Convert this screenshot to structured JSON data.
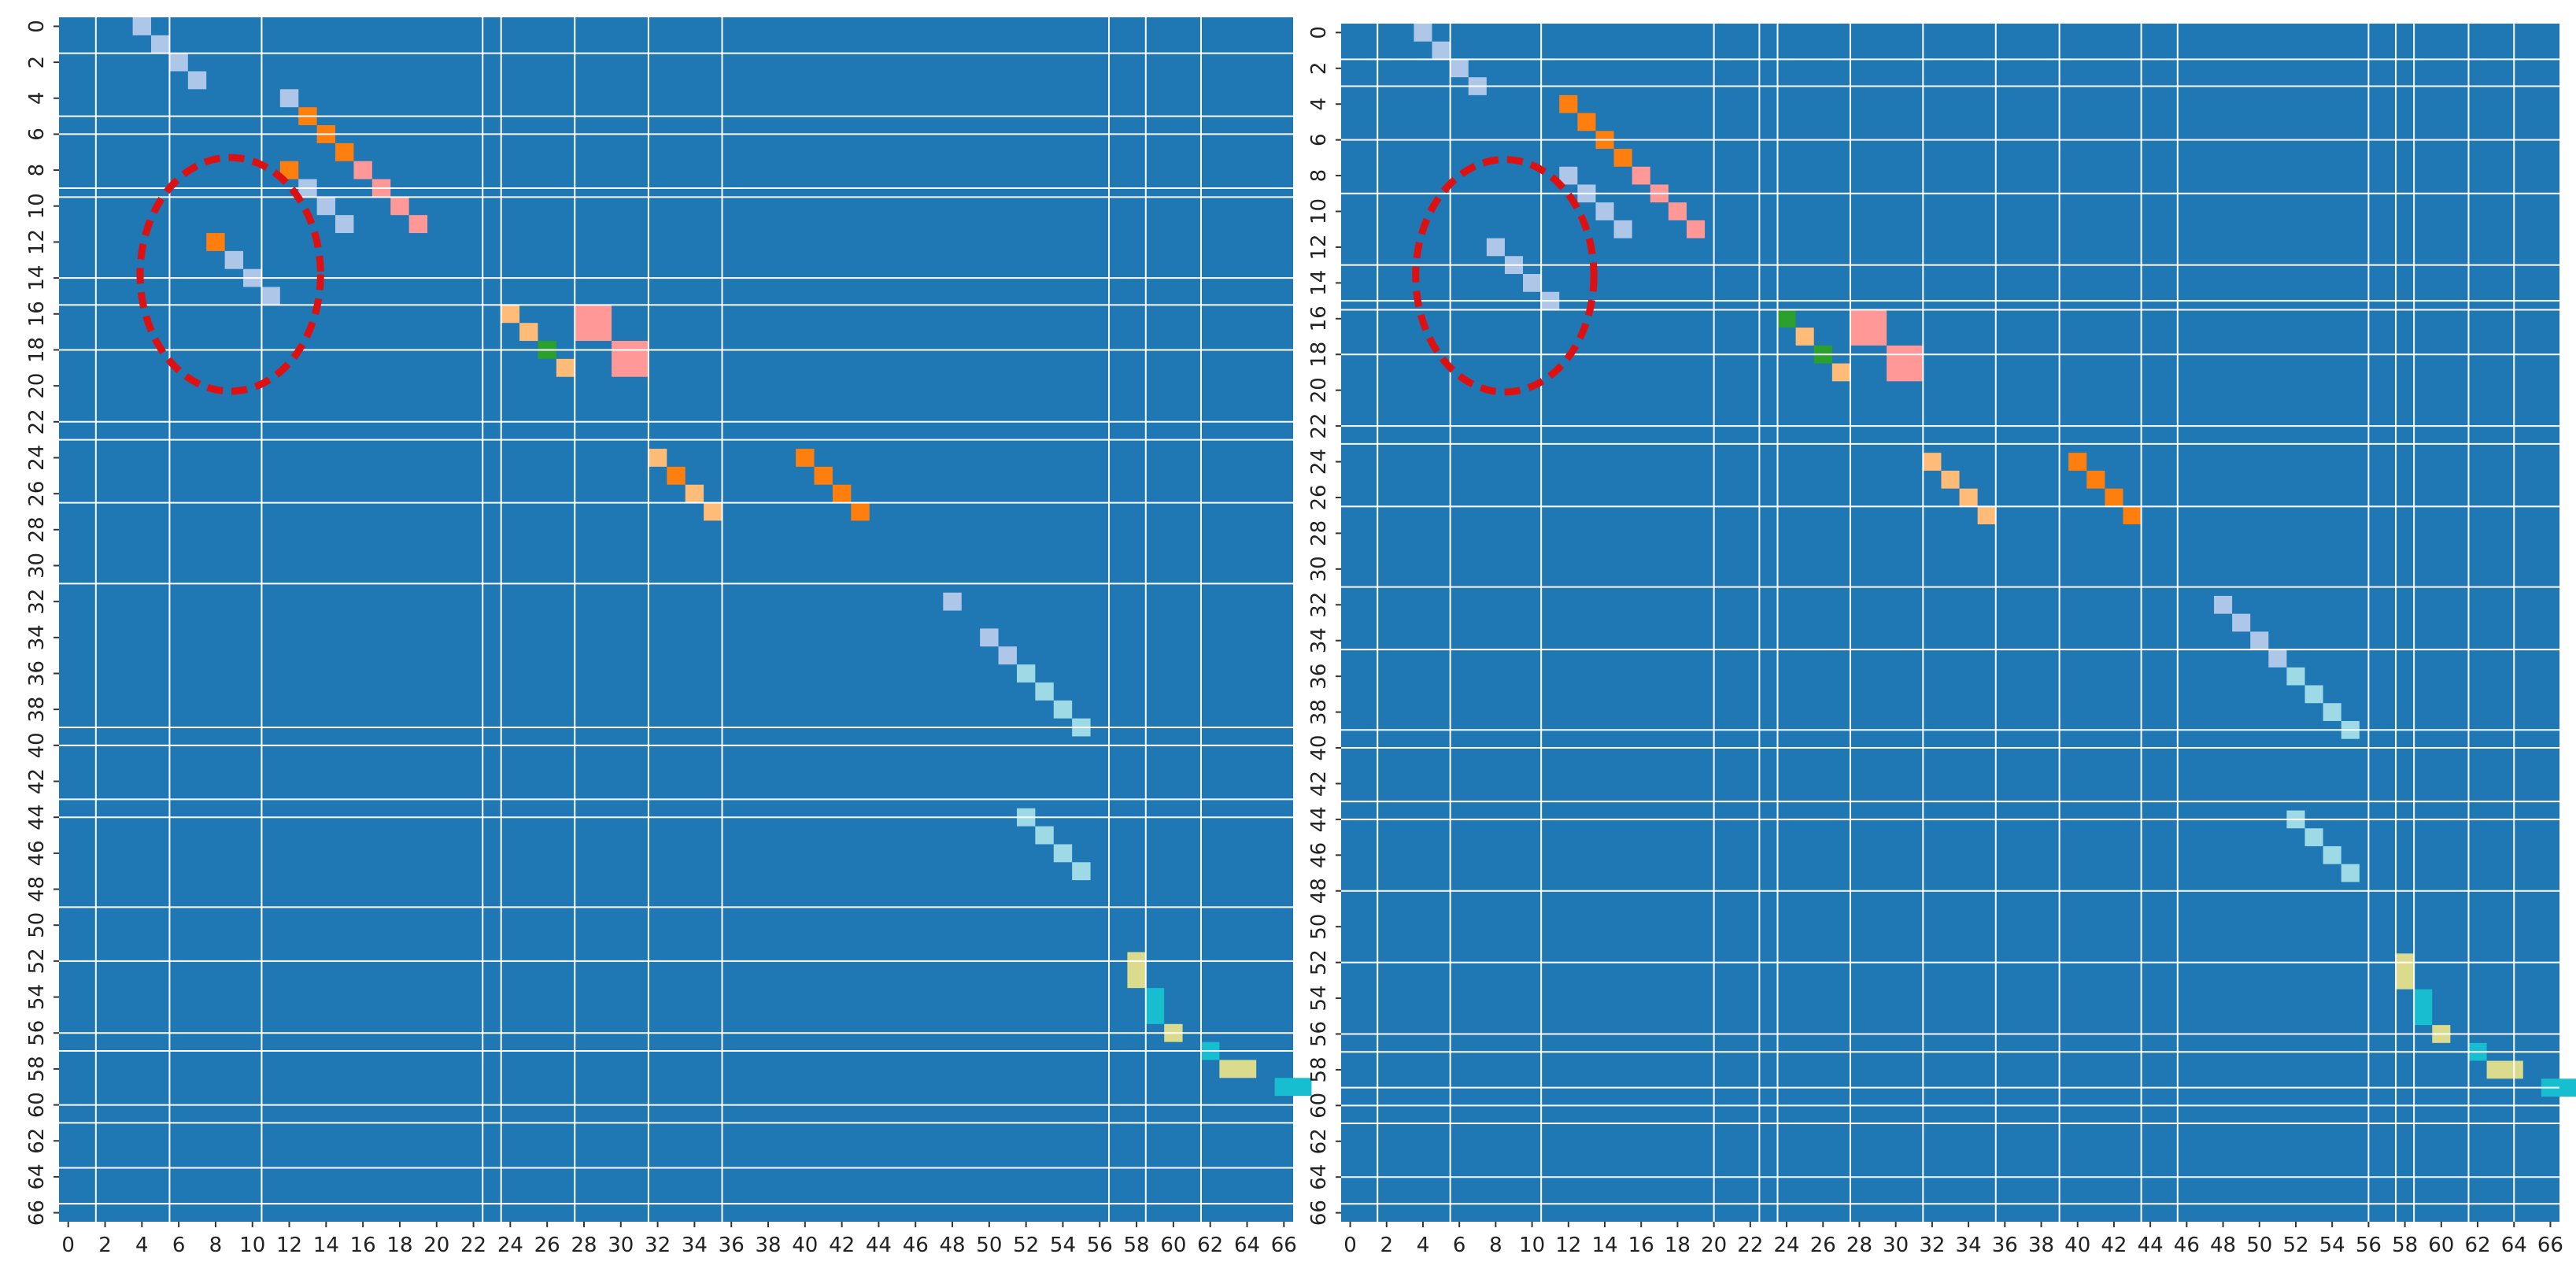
{
  "colors": {
    "background": "#1f77b4",
    "boundary_line": "#ffffff",
    "highlight_ellipse": "#dd1111",
    "tick_text": "#222222"
  },
  "chart_data": [
    {
      "type": "heatmap",
      "panel": "left",
      "title": "",
      "xlabel": "",
      "ylabel": "",
      "xlim": [
        0,
        67
      ],
      "ylim": [
        0,
        67
      ],
      "x_ticks": [
        "0",
        "2",
        "4",
        "6",
        "8",
        "10",
        "12",
        "14",
        "16",
        "18",
        "20",
        "22",
        "24",
        "26",
        "28",
        "30",
        "32",
        "34",
        "36",
        "38",
        "40",
        "42",
        "44",
        "46",
        "48",
        "50",
        "52",
        "54",
        "56",
        "58",
        "60",
        "62",
        "64",
        "66"
      ],
      "y_ticks": [
        "0",
        "2",
        "4",
        "6",
        "8",
        "10",
        "12",
        "14",
        "16",
        "18",
        "20",
        "22",
        "24",
        "26",
        "28",
        "30",
        "32",
        "34",
        "36",
        "38",
        "40",
        "42",
        "44",
        "46",
        "48",
        "50",
        "52",
        "54",
        "56",
        "58",
        "60",
        "62",
        "64",
        "66"
      ],
      "background_color": "#1f77b4",
      "vertical_boundaries": [
        2,
        6,
        11,
        23,
        24,
        28,
        32,
        36,
        57,
        59,
        62
      ],
      "horizontal_boundaries": [
        2,
        5.5,
        6.5,
        9.5,
        10,
        14.5,
        16,
        18.5,
        22.5,
        23.5,
        27,
        31.5,
        39.5,
        40.5,
        43.5,
        44.5,
        49.5,
        52.5,
        56.5,
        57.5,
        60.5,
        61.5,
        64,
        66
      ],
      "cells": [
        {
          "x": 4,
          "y": 0,
          "w": 1,
          "h": 1,
          "color": "#aec7e8"
        },
        {
          "x": 5,
          "y": 1,
          "w": 1,
          "h": 1,
          "color": "#aec7e8"
        },
        {
          "x": 6,
          "y": 2,
          "w": 1,
          "h": 1,
          "color": "#aec7e8"
        },
        {
          "x": 7,
          "y": 3,
          "w": 1,
          "h": 1,
          "color": "#aec7e8"
        },
        {
          "x": 12,
          "y": 4,
          "w": 1,
          "h": 1,
          "color": "#aec7e8"
        },
        {
          "x": 13,
          "y": 5,
          "w": 1,
          "h": 1,
          "color": "#ff7f0e"
        },
        {
          "x": 14,
          "y": 6,
          "w": 1,
          "h": 1,
          "color": "#ff7f0e"
        },
        {
          "x": 15,
          "y": 7,
          "w": 1,
          "h": 1,
          "color": "#ff7f0e"
        },
        {
          "x": 12,
          "y": 8,
          "w": 1,
          "h": 1,
          "color": "#ff7f0e"
        },
        {
          "x": 16,
          "y": 8,
          "w": 1,
          "h": 1,
          "color": "#ff9896"
        },
        {
          "x": 13,
          "y": 9,
          "w": 1,
          "h": 1,
          "color": "#aec7e8"
        },
        {
          "x": 17,
          "y": 9,
          "w": 1,
          "h": 1,
          "color": "#ff9896"
        },
        {
          "x": 14,
          "y": 10,
          "w": 1,
          "h": 1,
          "color": "#aec7e8"
        },
        {
          "x": 18,
          "y": 10,
          "w": 1,
          "h": 1,
          "color": "#ff9896"
        },
        {
          "x": 15,
          "y": 11,
          "w": 1,
          "h": 1,
          "color": "#aec7e8"
        },
        {
          "x": 19,
          "y": 11,
          "w": 1,
          "h": 1,
          "color": "#ff9896"
        },
        {
          "x": 8,
          "y": 12,
          "w": 1,
          "h": 1,
          "color": "#ff7f0e"
        },
        {
          "x": 9,
          "y": 13,
          "w": 1,
          "h": 1,
          "color": "#aec7e8"
        },
        {
          "x": 10,
          "y": 14,
          "w": 1,
          "h": 1,
          "color": "#aec7e8"
        },
        {
          "x": 11,
          "y": 15,
          "w": 1,
          "h": 1,
          "color": "#aec7e8"
        },
        {
          "x": 24,
          "y": 16,
          "w": 1,
          "h": 1,
          "color": "#ffbb78"
        },
        {
          "x": 25,
          "y": 17,
          "w": 1,
          "h": 1,
          "color": "#ffbb78"
        },
        {
          "x": 26,
          "y": 18,
          "w": 1,
          "h": 1,
          "color": "#2ca02c"
        },
        {
          "x": 27,
          "y": 19,
          "w": 1,
          "h": 1,
          "color": "#ffbb78"
        },
        {
          "x": 28,
          "y": 16,
          "w": 2,
          "h": 2,
          "color": "#ff9896"
        },
        {
          "x": 30,
          "y": 18,
          "w": 2,
          "h": 2,
          "color": "#ff9896"
        },
        {
          "x": 32,
          "y": 24,
          "w": 1,
          "h": 1,
          "color": "#ffbb78"
        },
        {
          "x": 33,
          "y": 25,
          "w": 1,
          "h": 1,
          "color": "#ff7f0e"
        },
        {
          "x": 34,
          "y": 26,
          "w": 1,
          "h": 1,
          "color": "#ffbb78"
        },
        {
          "x": 35,
          "y": 27,
          "w": 1,
          "h": 1,
          "color": "#ffbb78"
        },
        {
          "x": 40,
          "y": 24,
          "w": 1,
          "h": 1,
          "color": "#ff7f0e"
        },
        {
          "x": 41,
          "y": 25,
          "w": 1,
          "h": 1,
          "color": "#ff7f0e"
        },
        {
          "x": 42,
          "y": 26,
          "w": 1,
          "h": 1,
          "color": "#ff7f0e"
        },
        {
          "x": 43,
          "y": 27,
          "w": 1,
          "h": 1,
          "color": "#ff7f0e"
        },
        {
          "x": 48,
          "y": 32,
          "w": 1,
          "h": 1,
          "color": "#aec7e8"
        },
        {
          "x": 50,
          "y": 34,
          "w": 1,
          "h": 1,
          "color": "#aec7e8"
        },
        {
          "x": 51,
          "y": 35,
          "w": 1,
          "h": 1,
          "color": "#aec7e8"
        },
        {
          "x": 52,
          "y": 36,
          "w": 1,
          "h": 1,
          "color": "#9edae5"
        },
        {
          "x": 53,
          "y": 37,
          "w": 1,
          "h": 1,
          "color": "#9edae5"
        },
        {
          "x": 54,
          "y": 38,
          "w": 1,
          "h": 1,
          "color": "#9edae5"
        },
        {
          "x": 55,
          "y": 39,
          "w": 1,
          "h": 1,
          "color": "#9edae5"
        },
        {
          "x": 52,
          "y": 44,
          "w": 1,
          "h": 1,
          "color": "#9edae5"
        },
        {
          "x": 53,
          "y": 45,
          "w": 1,
          "h": 1,
          "color": "#9edae5"
        },
        {
          "x": 54,
          "y": 46,
          "w": 1,
          "h": 1,
          "color": "#9edae5"
        },
        {
          "x": 55,
          "y": 47,
          "w": 1,
          "h": 1,
          "color": "#9edae5"
        },
        {
          "x": 58,
          "y": 52,
          "w": 1,
          "h": 2,
          "color": "#dbdb8d"
        },
        {
          "x": 59,
          "y": 54,
          "w": 1,
          "h": 2,
          "color": "#17becf"
        },
        {
          "x": 60,
          "y": 56,
          "w": 1,
          "h": 1,
          "color": "#dbdb8d"
        },
        {
          "x": 62,
          "y": 57,
          "w": 1,
          "h": 1,
          "color": "#17becf"
        },
        {
          "x": 63,
          "y": 58,
          "w": 2,
          "h": 1,
          "color": "#dbdb8d"
        },
        {
          "x": 66,
          "y": 59,
          "w": 2,
          "h": 1,
          "color": "#17becf"
        }
      ],
      "highlight": {
        "shape": "ellipse",
        "cx": 9.3,
        "cy": 14.3,
        "rx": 4.9,
        "ry": 6.5
      }
    },
    {
      "type": "heatmap",
      "panel": "right",
      "title": "",
      "xlabel": "",
      "ylabel": "",
      "xlim": [
        0,
        67
      ],
      "ylim": [
        0,
        67
      ],
      "x_ticks": [
        "0",
        "2",
        "4",
        "6",
        "8",
        "10",
        "12",
        "14",
        "16",
        "18",
        "20",
        "22",
        "24",
        "26",
        "28",
        "30",
        "32",
        "34",
        "36",
        "38",
        "40",
        "42",
        "44",
        "46",
        "48",
        "50",
        "52",
        "54",
        "56",
        "58",
        "60",
        "62",
        "64",
        "66"
      ],
      "y_ticks": [
        "0",
        "2",
        "4",
        "6",
        "8",
        "10",
        "12",
        "14",
        "16",
        "18",
        "20",
        "22",
        "24",
        "26",
        "28",
        "30",
        "32",
        "34",
        "36",
        "38",
        "40",
        "42",
        "44",
        "46",
        "48",
        "50",
        "52",
        "54",
        "56",
        "58",
        "60",
        "62",
        "64",
        "66"
      ],
      "background_color": "#1f77b4",
      "vertical_boundaries": [
        2,
        6,
        11,
        20.5,
        23,
        24,
        28,
        32,
        36,
        39.5,
        44,
        46,
        56.5,
        58,
        59,
        62,
        64.5
      ],
      "horizontal_boundaries": [
        2,
        3.5,
        6.5,
        9.5,
        13.5,
        15.5,
        16,
        18.5,
        22.5,
        23.5,
        27,
        31.5,
        35,
        39.5,
        40.5,
        43.5,
        44.5,
        48.5,
        52.5,
        56.5,
        57.5,
        59.5,
        60.5,
        61.5,
        64.5,
        66
      ],
      "cells": [
        {
          "x": 4,
          "y": 0,
          "w": 1,
          "h": 1,
          "color": "#aec7e8"
        },
        {
          "x": 5,
          "y": 1,
          "w": 1,
          "h": 1,
          "color": "#aec7e8"
        },
        {
          "x": 6,
          "y": 2,
          "w": 1,
          "h": 1,
          "color": "#aec7e8"
        },
        {
          "x": 7,
          "y": 3,
          "w": 1,
          "h": 1,
          "color": "#aec7e8"
        },
        {
          "x": 12,
          "y": 4,
          "w": 1,
          "h": 1,
          "color": "#ff7f0e"
        },
        {
          "x": 13,
          "y": 5,
          "w": 1,
          "h": 1,
          "color": "#ff7f0e"
        },
        {
          "x": 14,
          "y": 6,
          "w": 1,
          "h": 1,
          "color": "#ff7f0e"
        },
        {
          "x": 15,
          "y": 7,
          "w": 1,
          "h": 1,
          "color": "#ff7f0e"
        },
        {
          "x": 12,
          "y": 8,
          "w": 1,
          "h": 1,
          "color": "#aec7e8"
        },
        {
          "x": 16,
          "y": 8,
          "w": 1,
          "h": 1,
          "color": "#ff9896"
        },
        {
          "x": 13,
          "y": 9,
          "w": 1,
          "h": 1,
          "color": "#aec7e8"
        },
        {
          "x": 17,
          "y": 9,
          "w": 1,
          "h": 1,
          "color": "#ff9896"
        },
        {
          "x": 14,
          "y": 10,
          "w": 1,
          "h": 1,
          "color": "#aec7e8"
        },
        {
          "x": 18,
          "y": 10,
          "w": 1,
          "h": 1,
          "color": "#ff9896"
        },
        {
          "x": 15,
          "y": 11,
          "w": 1,
          "h": 1,
          "color": "#aec7e8"
        },
        {
          "x": 19,
          "y": 11,
          "w": 1,
          "h": 1,
          "color": "#ff9896"
        },
        {
          "x": 8,
          "y": 12,
          "w": 1,
          "h": 1,
          "color": "#aec7e8"
        },
        {
          "x": 9,
          "y": 13,
          "w": 1,
          "h": 1,
          "color": "#aec7e8"
        },
        {
          "x": 10,
          "y": 14,
          "w": 1,
          "h": 1,
          "color": "#aec7e8"
        },
        {
          "x": 11,
          "y": 15,
          "w": 1,
          "h": 1,
          "color": "#aec7e8"
        },
        {
          "x": 24,
          "y": 16,
          "w": 1,
          "h": 1,
          "color": "#2ca02c"
        },
        {
          "x": 25,
          "y": 17,
          "w": 1,
          "h": 1,
          "color": "#ffbb78"
        },
        {
          "x": 26,
          "y": 18,
          "w": 1,
          "h": 1,
          "color": "#2ca02c"
        },
        {
          "x": 27,
          "y": 19,
          "w": 1,
          "h": 1,
          "color": "#ffbb78"
        },
        {
          "x": 28,
          "y": 16,
          "w": 2,
          "h": 2,
          "color": "#ff9896"
        },
        {
          "x": 30,
          "y": 18,
          "w": 2,
          "h": 2,
          "color": "#ff9896"
        },
        {
          "x": 32,
          "y": 24,
          "w": 1,
          "h": 1,
          "color": "#ffbb78"
        },
        {
          "x": 33,
          "y": 25,
          "w": 1,
          "h": 1,
          "color": "#ffbb78"
        },
        {
          "x": 34,
          "y": 26,
          "w": 1,
          "h": 1,
          "color": "#ffbb78"
        },
        {
          "x": 35,
          "y": 27,
          "w": 1,
          "h": 1,
          "color": "#ffbb78"
        },
        {
          "x": 40,
          "y": 24,
          "w": 1,
          "h": 1,
          "color": "#ff7f0e"
        },
        {
          "x": 41,
          "y": 25,
          "w": 1,
          "h": 1,
          "color": "#ff7f0e"
        },
        {
          "x": 42,
          "y": 26,
          "w": 1,
          "h": 1,
          "color": "#ff7f0e"
        },
        {
          "x": 43,
          "y": 27,
          "w": 1,
          "h": 1,
          "color": "#ff7f0e"
        },
        {
          "x": 48,
          "y": 32,
          "w": 1,
          "h": 1,
          "color": "#aec7e8"
        },
        {
          "x": 49,
          "y": 33,
          "w": 1,
          "h": 1,
          "color": "#aec7e8"
        },
        {
          "x": 50,
          "y": 34,
          "w": 1,
          "h": 1,
          "color": "#aec7e8"
        },
        {
          "x": 51,
          "y": 35,
          "w": 1,
          "h": 1,
          "color": "#aec7e8"
        },
        {
          "x": 52,
          "y": 36,
          "w": 1,
          "h": 1,
          "color": "#9edae5"
        },
        {
          "x": 53,
          "y": 37,
          "w": 1,
          "h": 1,
          "color": "#9edae5"
        },
        {
          "x": 54,
          "y": 38,
          "w": 1,
          "h": 1,
          "color": "#9edae5"
        },
        {
          "x": 55,
          "y": 39,
          "w": 1,
          "h": 1,
          "color": "#9edae5"
        },
        {
          "x": 52,
          "y": 44,
          "w": 1,
          "h": 1,
          "color": "#9edae5"
        },
        {
          "x": 53,
          "y": 45,
          "w": 1,
          "h": 1,
          "color": "#9edae5"
        },
        {
          "x": 54,
          "y": 46,
          "w": 1,
          "h": 1,
          "color": "#9edae5"
        },
        {
          "x": 55,
          "y": 47,
          "w": 1,
          "h": 1,
          "color": "#9edae5"
        },
        {
          "x": 58,
          "y": 52,
          "w": 1,
          "h": 2,
          "color": "#dbdb8d"
        },
        {
          "x": 59,
          "y": 54,
          "w": 1,
          "h": 2,
          "color": "#17becf"
        },
        {
          "x": 60,
          "y": 56,
          "w": 1,
          "h": 1,
          "color": "#dbdb8d"
        },
        {
          "x": 62,
          "y": 57,
          "w": 1,
          "h": 1,
          "color": "#17becf"
        },
        {
          "x": 63,
          "y": 58,
          "w": 2,
          "h": 1,
          "color": "#dbdb8d"
        },
        {
          "x": 66,
          "y": 59,
          "w": 2,
          "h": 1,
          "color": "#17becf"
        }
      ],
      "highlight": {
        "shape": "ellipse",
        "cx": 9.0,
        "cy": 14.1,
        "rx": 4.9,
        "ry": 6.5
      }
    }
  ]
}
